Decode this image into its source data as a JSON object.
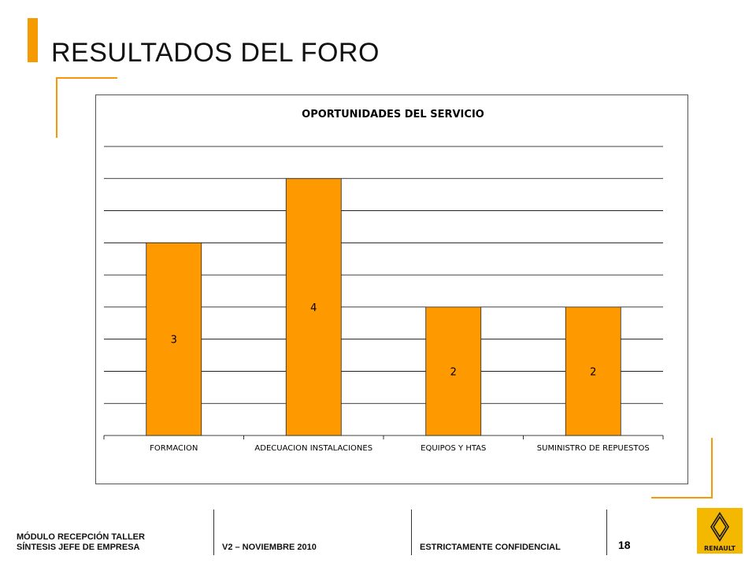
{
  "colors": {
    "accent": "#F59A00",
    "bar": "#FF9900",
    "bar_stroke": "#222222",
    "grid": "#000000"
  },
  "header": {
    "title": "RESULTADOS DEL FORO"
  },
  "chart_data": {
    "type": "bar",
    "title": "OPORTUNIDADES DEL SERVICIO",
    "categories": [
      "FORMACION",
      "ADECUACION INSTALACIONES",
      "EQUIPOS Y HTAS",
      "SUMINISTRO DE REPUESTOS"
    ],
    "values": [
      3,
      4,
      2,
      2
    ],
    "data_labels": [
      "3",
      "4",
      "2",
      "2"
    ],
    "ylim": [
      0,
      4.5
    ],
    "grid": true,
    "legend": false,
    "y_tick_labels_visible": false
  },
  "footer": {
    "module_line1": "MÓDULO RECEPCIÓN TALLER",
    "module_line2": "SÍNTESIS JEFE DE EMPRESA",
    "version": "V2 – NOVIEMBRE 2010",
    "confidential": "ESTRICTAMENTE CONFIDENCIAL",
    "page_number": "18"
  },
  "logo": {
    "icon": "renault-diamond-icon",
    "text": "RENAULT"
  }
}
